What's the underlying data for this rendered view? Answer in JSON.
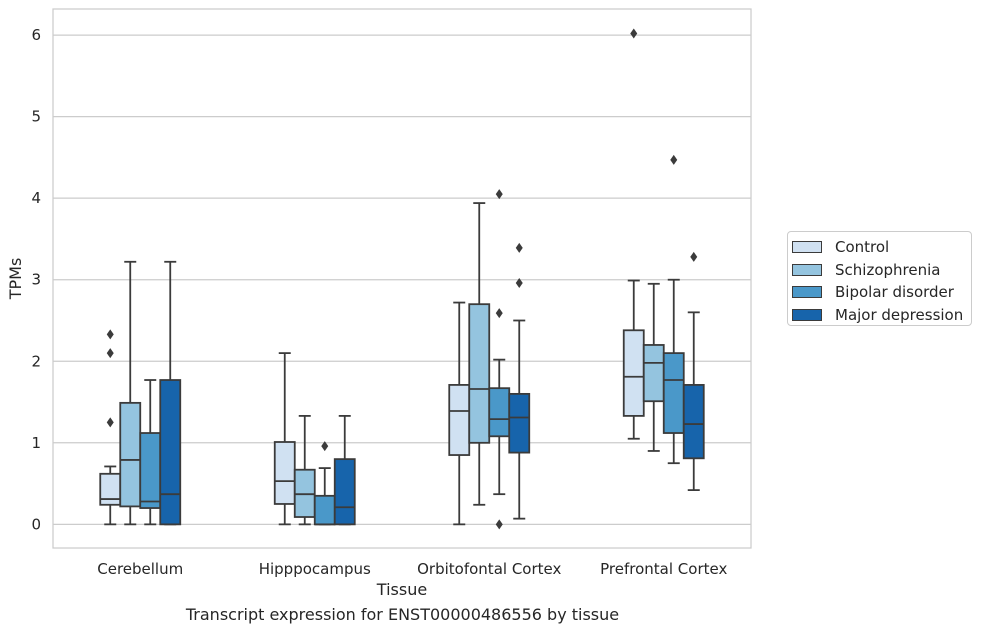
{
  "chart_data": {
    "type": "box",
    "title": "",
    "caption": "Transcript expression for ENST00000486556 by tissue",
    "xlabel": "Tissue",
    "ylabel": "TPMs",
    "ylim": [
      -0.29,
      6.32
    ],
    "yticks": [
      0,
      1,
      2,
      3,
      4,
      5,
      6
    ],
    "grid": true,
    "legend_position": "right",
    "categories": [
      "Cerebellum",
      "Hipppocampus",
      "Orbitofontal Cortex",
      "Prefrontal Cortex"
    ],
    "series": [
      {
        "name": "Control",
        "color": "#d0e1f2",
        "boxes": [
          {
            "min": 0.0,
            "q1": 0.24,
            "median": 0.31,
            "q3": 0.62,
            "max": 0.71,
            "outliers": [
              1.25,
              2.1,
              2.33
            ]
          },
          {
            "min": 0.0,
            "q1": 0.25,
            "median": 0.53,
            "q3": 1.01,
            "max": 2.1,
            "outliers": []
          },
          {
            "min": 0.0,
            "q1": 0.85,
            "median": 1.39,
            "q3": 1.71,
            "max": 2.72,
            "outliers": []
          },
          {
            "min": 1.05,
            "q1": 1.33,
            "median": 1.81,
            "q3": 2.38,
            "max": 2.99,
            "outliers": [
              6.02
            ]
          }
        ]
      },
      {
        "name": "Schizophrenia",
        "color": "#94c4df",
        "boxes": [
          {
            "min": 0.0,
            "q1": 0.22,
            "median": 0.79,
            "q3": 1.49,
            "max": 3.22,
            "outliers": []
          },
          {
            "min": 0.0,
            "q1": 0.09,
            "median": 0.37,
            "q3": 0.67,
            "max": 1.33,
            "outliers": []
          },
          {
            "min": 0.24,
            "q1": 1.0,
            "median": 1.66,
            "q3": 2.7,
            "max": 3.94,
            "outliers": []
          },
          {
            "min": 0.9,
            "q1": 1.51,
            "median": 1.98,
            "q3": 2.2,
            "max": 2.95,
            "outliers": []
          }
        ]
      },
      {
        "name": "Bipolar disorder",
        "color": "#4a98c9",
        "boxes": [
          {
            "min": 0.0,
            "q1": 0.2,
            "median": 0.28,
            "q3": 1.12,
            "max": 1.77,
            "outliers": []
          },
          {
            "min": 0.0,
            "q1": 0.0,
            "median": 0.0,
            "q3": 0.35,
            "max": 0.69,
            "outliers": [
              0.96
            ]
          },
          {
            "min": 0.37,
            "q1": 1.08,
            "median": 1.29,
            "q3": 1.67,
            "max": 2.02,
            "outliers": [
              0.0,
              2.59,
              4.05
            ]
          },
          {
            "min": 0.75,
            "q1": 1.12,
            "median": 1.77,
            "q3": 2.1,
            "max": 3.0,
            "outliers": [
              4.47
            ]
          }
        ]
      },
      {
        "name": "Major depression",
        "color": "#1764ab",
        "boxes": [
          {
            "min": 0.0,
            "q1": 0.0,
            "median": 0.37,
            "q3": 1.77,
            "max": 3.22,
            "outliers": []
          },
          {
            "min": 0.0,
            "q1": 0.0,
            "median": 0.21,
            "q3": 0.8,
            "max": 1.33,
            "outliers": []
          },
          {
            "min": 0.07,
            "q1": 0.88,
            "median": 1.31,
            "q3": 1.6,
            "max": 2.5,
            "outliers": [
              2.96,
              3.39
            ]
          },
          {
            "min": 0.42,
            "q1": 0.81,
            "median": 1.23,
            "q3": 1.71,
            "max": 2.6,
            "outliers": [
              3.28
            ]
          }
        ]
      }
    ]
  }
}
